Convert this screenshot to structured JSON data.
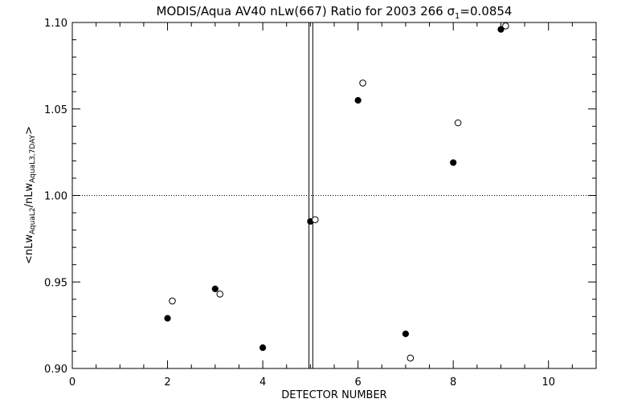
{
  "chart_data": {
    "type": "scatter",
    "title_main": "MODIS/Aqua AV40 nLw(667) Ratio for 2003 266 ",
    "title_sigma": "σ",
    "title_sub": "1",
    "title_value": "=0.0854",
    "xlabel": "DETECTOR NUMBER",
    "ylabel": {
      "open": "<nLw",
      "sub1": "AquaL2",
      "mid": "/nLw",
      "sub2": "AquaL3,7DAY",
      "close": ">"
    },
    "xlim": [
      0,
      11
    ],
    "ylim": [
      0.9,
      1.1
    ],
    "x_ticks": [
      0,
      2,
      4,
      6,
      8,
      10
    ],
    "x_tick_labels": [
      "0",
      "2",
      "4",
      "6",
      "8",
      "10"
    ],
    "y_ticks": [
      0.9,
      0.95,
      1.0,
      1.05,
      1.1
    ],
    "y_tick_labels": [
      "0.90",
      "0.95",
      "1.00",
      "1.05",
      "1.10"
    ],
    "reference_line_y": 1.0,
    "vertical_lines_x": [
      4.97,
      5.05
    ],
    "series": [
      {
        "marker": "filled",
        "x": [
          2,
          3,
          4,
          5,
          6,
          7,
          8,
          9
        ],
        "y": [
          0.929,
          0.946,
          0.912,
          0.985,
          1.055,
          0.92,
          1.019,
          1.096
        ]
      },
      {
        "marker": "open",
        "x": [
          2.1,
          3.1,
          5.1,
          6.1,
          7.1,
          8.1,
          9.1
        ],
        "y": [
          0.939,
          0.943,
          0.986,
          1.065,
          0.906,
          1.042,
          1.098
        ]
      }
    ]
  }
}
